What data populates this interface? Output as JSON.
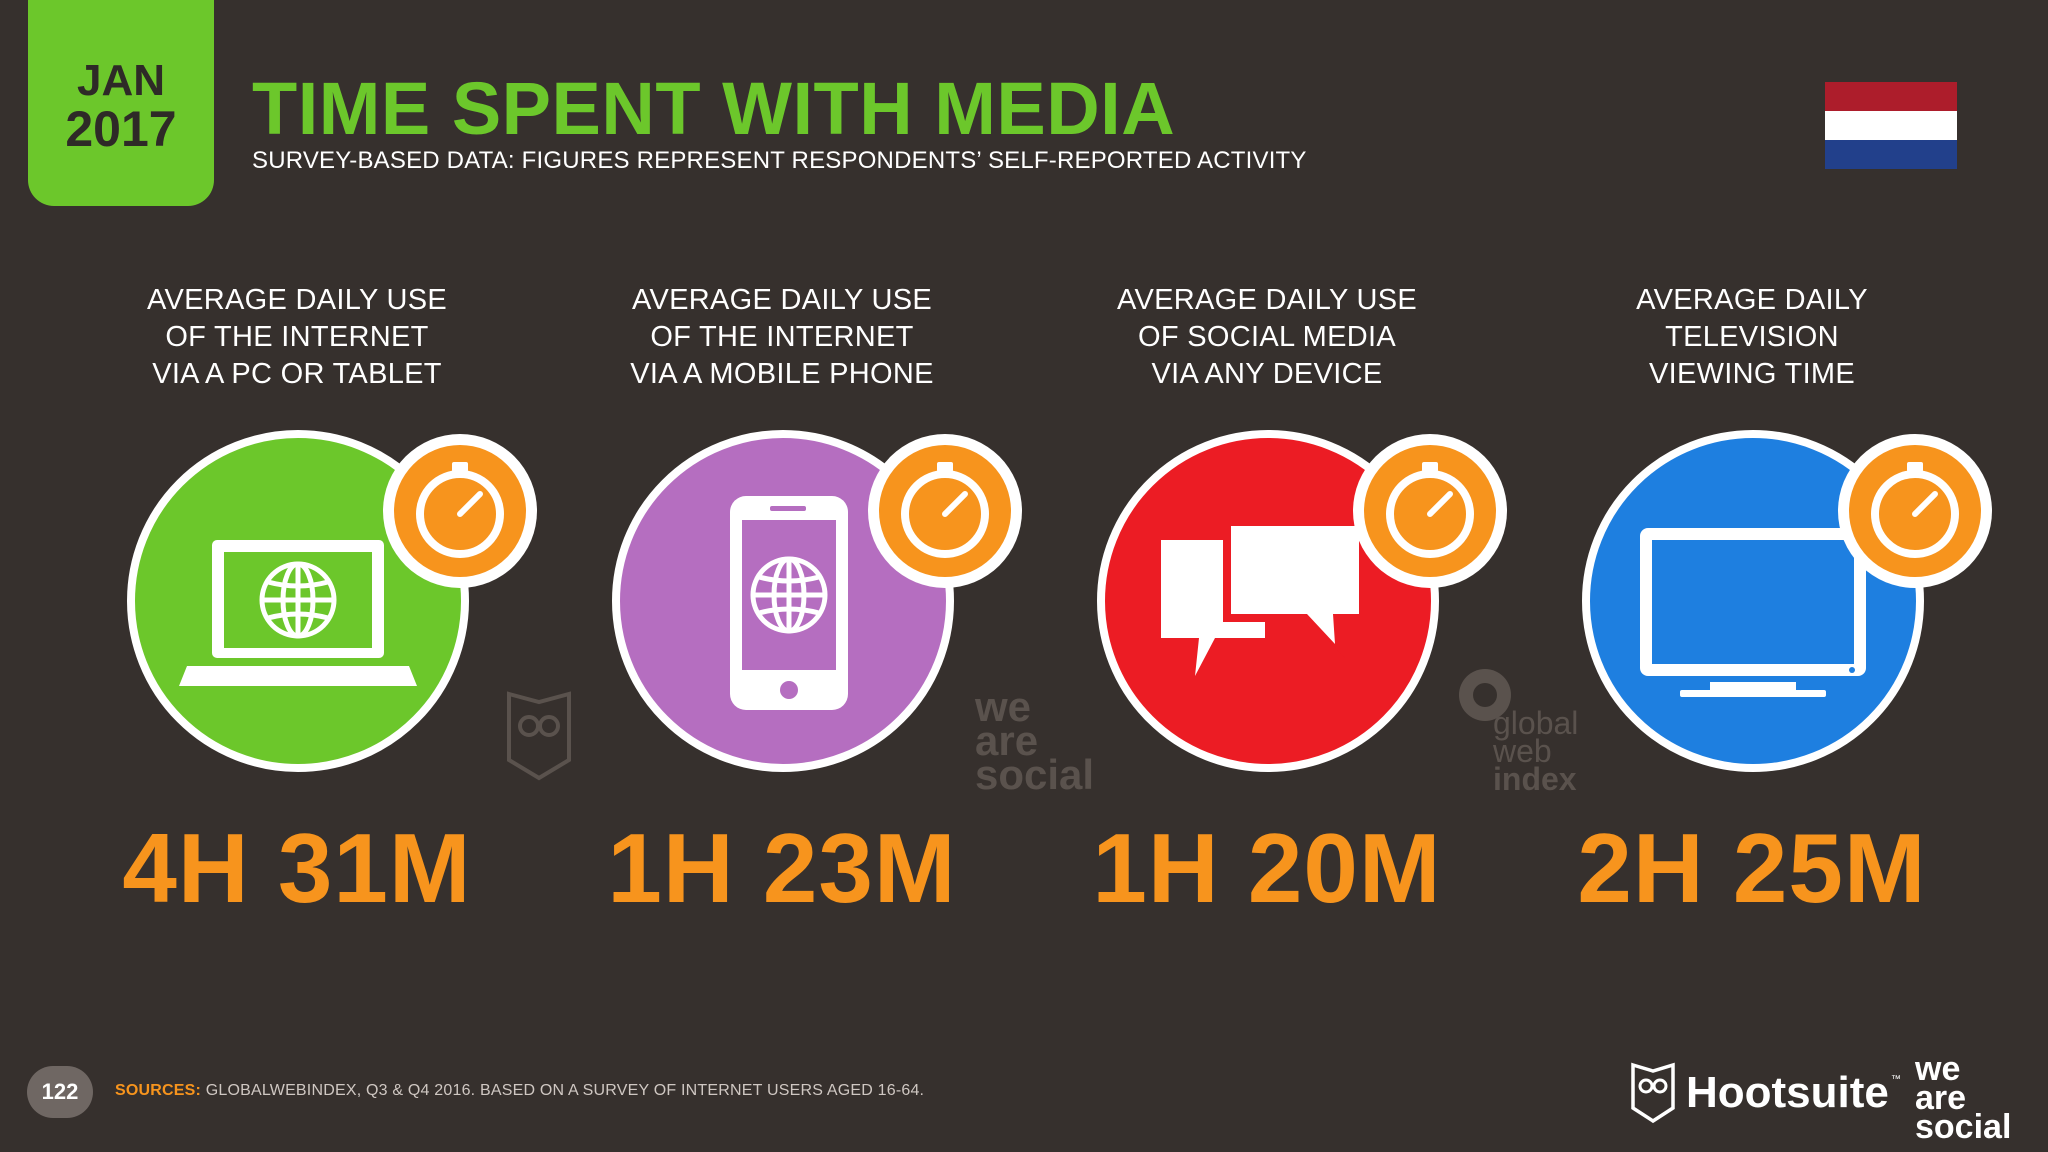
{
  "header": {
    "date_month": "JAN",
    "date_year": "2017",
    "title": "TIME SPENT WITH MEDIA",
    "subtitle": "SURVEY-BASED DATA: FIGURES REPRESENT RESPONDENTS’ SELF-REPORTED ACTIVITY",
    "flag": "netherlands-flag"
  },
  "columns": [
    {
      "label": [
        "AVERAGE DAILY USE",
        "OF THE INTERNET",
        "VIA A PC OR TABLET"
      ],
      "value": "4H 31M",
      "color": "#6cc72b",
      "icon": "laptop-globe-icon"
    },
    {
      "label": [
        "AVERAGE DAILY USE",
        "OF THE INTERNET",
        "VIA A MOBILE PHONE"
      ],
      "value": "1H 23M",
      "color": "#b56ec0",
      "icon": "mobile-phone-globe-icon"
    },
    {
      "label": [
        "AVERAGE DAILY USE",
        "OF SOCIAL MEDIA",
        "VIA ANY DEVICE"
      ],
      "value": "1H 20M",
      "color": "#ec1c24",
      "icon": "speech-bubbles-icon"
    },
    {
      "label": [
        "AVERAGE DAILY",
        "TELEVISION",
        "VIEWING TIME"
      ],
      "value": "2H 25M",
      "color": "#1e7fe0",
      "icon": "television-icon"
    }
  ],
  "colors": {
    "accent": "#6cc72b",
    "value": "#f7941d",
    "timer": "#f7941d",
    "background": "#36302d"
  },
  "watermarks": {
    "we_are_social": [
      "we",
      "are",
      "social"
    ],
    "globalwebindex": [
      "global",
      "web",
      "index"
    ]
  },
  "footer": {
    "page_number": "122",
    "sources_label": "SOURCES:",
    "sources_text": "GLOBALWEBINDEX, Q3 & Q4 2016. BASED ON A SURVEY OF INTERNET USERS AGED 16-64.",
    "hootsuite": "Hootsuite",
    "hootsuite_tm": "™",
    "we_are_social": [
      "we",
      "are",
      "social"
    ]
  }
}
